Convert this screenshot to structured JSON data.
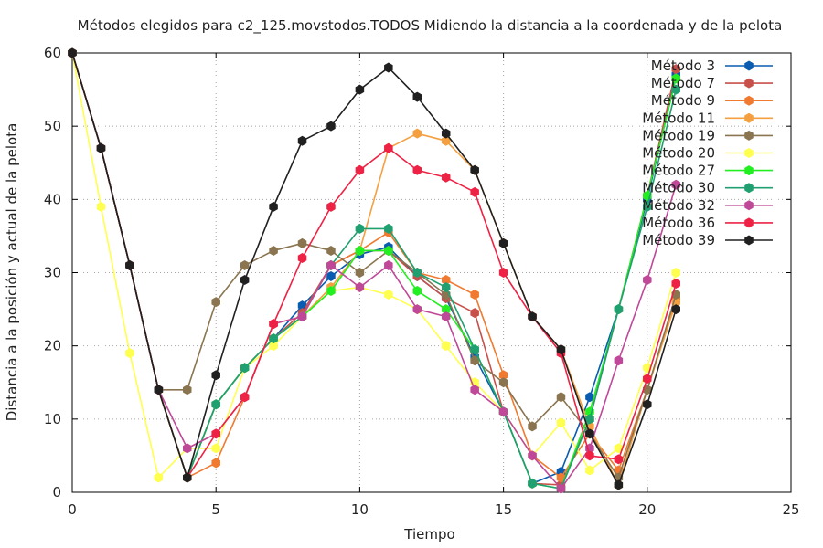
{
  "chart_data": {
    "type": "line",
    "title": "Métodos elegidos para c2_125.movstodos.TODOS Midiendo la distancia a la coordenada y de la pelota",
    "xlabel": "Tiempo",
    "ylabel": "Distancia a la posición y actual de la pelota",
    "xlim": [
      0,
      25
    ],
    "ylim": [
      0,
      60
    ],
    "xticks": [
      0,
      5,
      10,
      15,
      20,
      25
    ],
    "yticks": [
      0,
      10,
      20,
      30,
      40,
      50,
      60
    ],
    "xtick_labels": [
      "0",
      "5",
      "10",
      "15",
      "20",
      "25"
    ],
    "ytick_labels": [
      "0",
      "10",
      "20",
      "30",
      "40",
      "50",
      "60"
    ],
    "grid": true,
    "legend_position": "top-right",
    "x": [
      0,
      1,
      2,
      3,
      4,
      5,
      6,
      7,
      8,
      9,
      10,
      11,
      12,
      13,
      14,
      15,
      16,
      17,
      18,
      19,
      20,
      21
    ],
    "series": [
      {
        "name": "Método 3",
        "color": "#0a5cb0",
        "values": [
          60,
          47,
          31,
          14,
          2,
          12,
          17,
          21,
          25.5,
          29.5,
          32.5,
          33.5,
          29.5,
          26.5,
          18.5,
          11,
          1.2,
          2.8,
          13,
          25,
          40,
          57
        ]
      },
      {
        "name": "Método 7",
        "color": "#c8504b",
        "values": [
          60,
          47,
          31,
          14,
          2,
          12,
          17,
          21,
          24.5,
          31,
          33,
          33,
          29.5,
          26.5,
          24.5,
          11,
          1.2,
          1,
          10,
          25,
          40.5,
          57.8
        ]
      },
      {
        "name": "Método 9",
        "color": "#ef7a30",
        "values": [
          60,
          47,
          31,
          14,
          2,
          4,
          13,
          23,
          24,
          31,
          33,
          35.5,
          30,
          29,
          27,
          16,
          5,
          2,
          8,
          3,
          14,
          26.5
        ]
      },
      {
        "name": "Método 11",
        "color": "#f5a040",
        "values": [
          60,
          47,
          31,
          14,
          2,
          12,
          17,
          21,
          24,
          28,
          33,
          47,
          49,
          48,
          44,
          34,
          24,
          19.5,
          9,
          1,
          14,
          26
        ]
      },
      {
        "name": "Método 19",
        "color": "#8a7550",
        "values": [
          60,
          47,
          31,
          14,
          14,
          26,
          31,
          33,
          34,
          33,
          30,
          33,
          30,
          27,
          18,
          15,
          9,
          13,
          8,
          2,
          14,
          27
        ]
      },
      {
        "name": "Método 20",
        "color": "#ffff50",
        "values": [
          60,
          39,
          19,
          2,
          6,
          6,
          17,
          20,
          24,
          27.5,
          28,
          27,
          25,
          20,
          15,
          11,
          5,
          9.5,
          3,
          6,
          17,
          30
        ]
      },
      {
        "name": "Método 27",
        "color": "#22ee22",
        "values": [
          60,
          47,
          31,
          14,
          2,
          12,
          17,
          21,
          24,
          27.5,
          33,
          33,
          27.5,
          25,
          19.5,
          11,
          1.2,
          0.5,
          11,
          25,
          40.5,
          56.5
        ]
      },
      {
        "name": "Método 30",
        "color": "#20a070",
        "values": [
          60,
          47,
          31,
          14,
          2,
          12,
          17,
          21,
          24,
          31,
          36,
          36,
          30,
          28,
          19.5,
          11,
          1.2,
          0.5,
          10,
          25,
          39,
          55
        ]
      },
      {
        "name": "Método 32",
        "color": "#c04898",
        "values": [
          60,
          47,
          31,
          14,
          6,
          8,
          13,
          23,
          24,
          31,
          28,
          31,
          25,
          24,
          14,
          11,
          5,
          0.5,
          6,
          18,
          29,
          42
        ]
      },
      {
        "name": "Método 36",
        "color": "#ee2244",
        "values": [
          60,
          47,
          31,
          14,
          2,
          8,
          13,
          23,
          32,
          39,
          44,
          47,
          44,
          43,
          41,
          30,
          24,
          19,
          5,
          4.5,
          15.5,
          28.5
        ]
      },
      {
        "name": "Método 39",
        "color": "#202020",
        "values": [
          60,
          47,
          31,
          14,
          2,
          16,
          29,
          39,
          48,
          50,
          55,
          58,
          54,
          49,
          44,
          34,
          24,
          19.5,
          8,
          1,
          12,
          25
        ]
      }
    ]
  }
}
